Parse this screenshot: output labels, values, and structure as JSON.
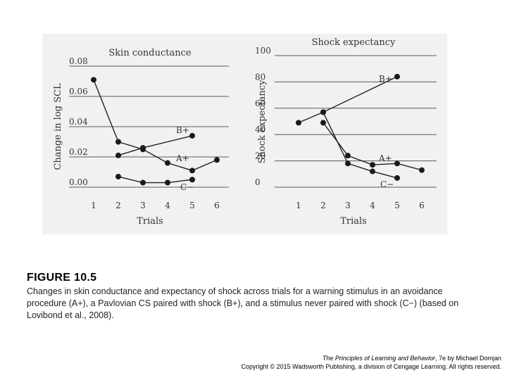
{
  "chart_data": [
    {
      "type": "line",
      "title": "Skin conductance",
      "xlabel": "Trials",
      "ylabel": "Change in log SCL",
      "x": [
        1,
        2,
        3,
        4,
        5,
        6
      ],
      "x_tick_labels": [
        "1",
        "2",
        "3",
        "4",
        "5",
        "6"
      ],
      "ylim": [
        0.0,
        0.08
      ],
      "y_ticks": [
        0.0,
        0.02,
        0.04,
        0.06,
        0.08
      ],
      "y_tick_labels": [
        "0.00",
        "0.02",
        "0.04",
        "0.06",
        "0.08"
      ],
      "grid": "horizontal",
      "series": [
        {
          "name": "A+",
          "x": [
            1,
            2,
            3,
            4,
            5,
            6
          ],
          "values": [
            0.071,
            0.03,
            0.025,
            0.016,
            0.011,
            0.018
          ]
        },
        {
          "name": "B+",
          "x": [
            2,
            3,
            5
          ],
          "values": [
            0.021,
            0.026,
            0.034
          ]
        },
        {
          "name": "C−",
          "x": [
            2,
            3,
            4,
            5
          ],
          "values": [
            0.007,
            0.003,
            0.003,
            0.005
          ]
        }
      ]
    },
    {
      "type": "line",
      "title": "Shock expectancy",
      "xlabel": "Trials",
      "ylabel": "Shock expectancy",
      "x": [
        1,
        2,
        3,
        4,
        5,
        6
      ],
      "x_tick_labels": [
        "1",
        "2",
        "3",
        "4",
        "5",
        "6"
      ],
      "ylim": [
        0,
        100
      ],
      "y_ticks": [
        0,
        20,
        40,
        60,
        80,
        100
      ],
      "y_tick_labels": [
        "0",
        "20",
        "40",
        "60",
        "80",
        "100"
      ],
      "grid": "horizontal",
      "series": [
        {
          "name": "A+",
          "x": [
            2,
            3,
            4,
            5,
            6
          ],
          "values": [
            49,
            24,
            17,
            18,
            13
          ]
        },
        {
          "name": "B+",
          "x": [
            1,
            2,
            5
          ],
          "values": [
            49,
            57,
            84
          ]
        },
        {
          "name": "C−",
          "x": [
            2,
            3,
            4,
            5
          ],
          "values": [
            57,
            18,
            12,
            7
          ]
        }
      ]
    }
  ],
  "figure": {
    "title": "FIGURE 10.5",
    "caption": "Changes in skin conductance and expectancy of shock across trials for a warning stimulus in an avoidance procedure (A+), a Pavlovian CS paired with shock (B+), and a stimulus never paired with shock (C−) (based on Lovibond et al., 2008)."
  },
  "credit": {
    "book_title": "The Principles of Learning and Behavior",
    "book_suffix": ", 7e by Michael Domjan",
    "copyright": "Copyright © 2015 Wadsworth Publishing, a division of Cengage Learning. All rights reserved."
  }
}
